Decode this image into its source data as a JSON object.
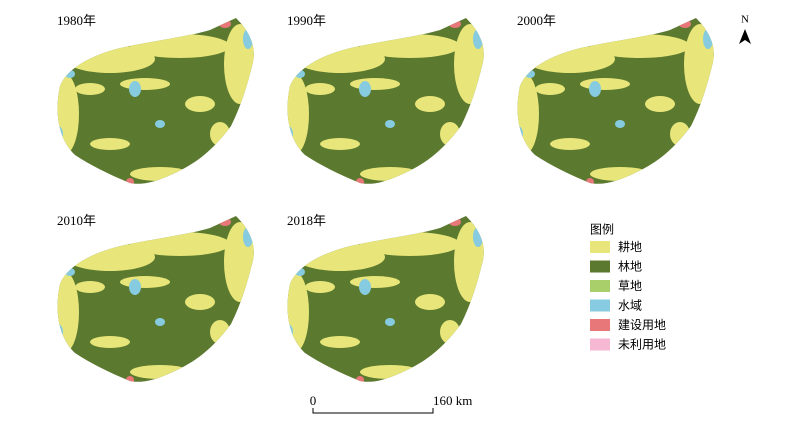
{
  "panels": [
    {
      "label": "1980年"
    },
    {
      "label": "1990年"
    },
    {
      "label": "2000年"
    },
    {
      "label": "2010年"
    },
    {
      "label": "2018年"
    }
  ],
  "legend": {
    "title": "图例",
    "items": [
      {
        "label": "耕地",
        "color": "#e8e57a"
      },
      {
        "label": "林地",
        "color": "#5b7a2f"
      },
      {
        "label": "草地",
        "color": "#a8cf6a"
      },
      {
        "label": "水域",
        "color": "#86cbe0"
      },
      {
        "label": "建设用地",
        "color": "#e8777a"
      },
      {
        "label": "未利用地",
        "color": "#f6b8d2"
      }
    ]
  },
  "north": "N",
  "scale_bar": {
    "start": "0",
    "end": "160 km"
  }
}
